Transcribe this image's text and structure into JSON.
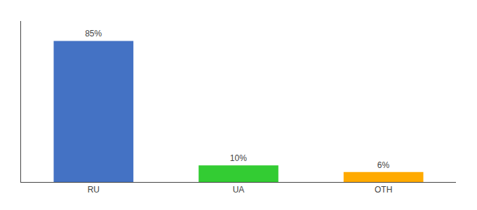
{
  "chart_data": {
    "type": "bar",
    "categories": [
      "RU",
      "UA",
      "OTH"
    ],
    "values": [
      85,
      10,
      6
    ],
    "value_labels": [
      "85%",
      "10%",
      "6%"
    ],
    "colors": [
      "#4472c4",
      "#33cc33",
      "#ffaa00"
    ],
    "ylim": [
      0,
      97
    ],
    "data_labels": true,
    "tick_labels": "x",
    "grid": false
  }
}
